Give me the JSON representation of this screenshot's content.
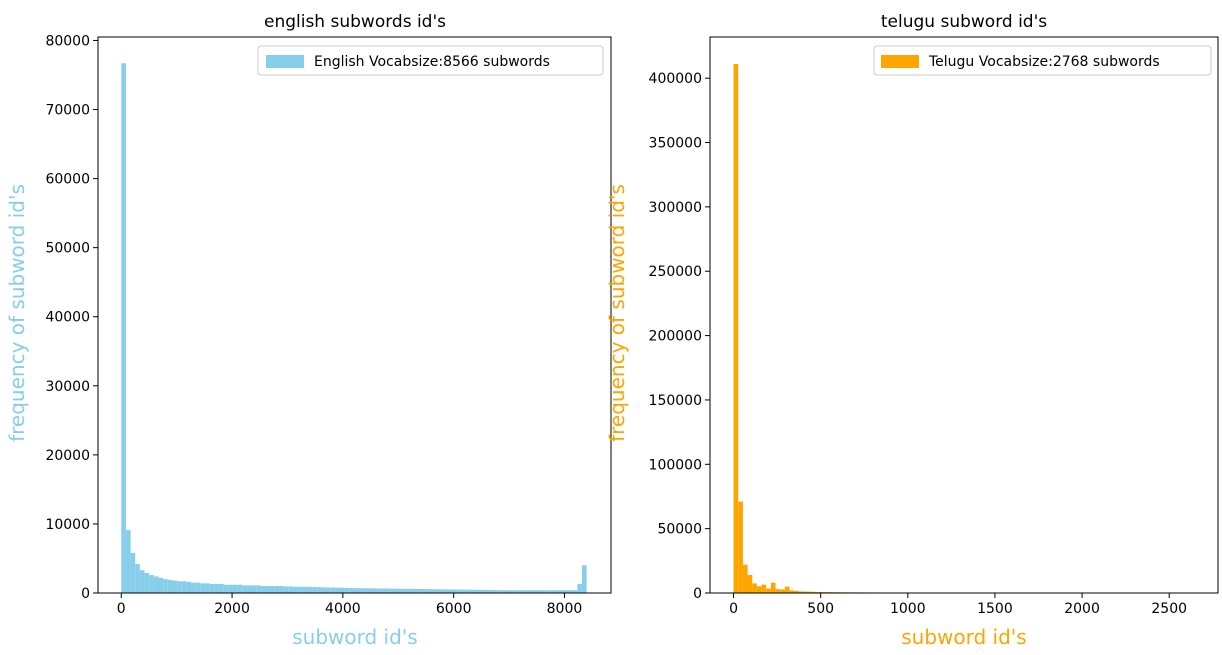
{
  "chart_data": [
    {
      "type": "bar",
      "title": "english subwords id's",
      "xlabel": "subword id's",
      "ylabel": "frequency of subword id's",
      "xlim": [
        -420,
        8840
      ],
      "ylim": [
        0,
        80500
      ],
      "xticks": [
        0,
        2000,
        4000,
        6000,
        8000
      ],
      "yticks": [
        0,
        10000,
        20000,
        30000,
        40000,
        50000,
        60000,
        70000,
        80000
      ],
      "bin_width": 84.0,
      "bin_start": 0,
      "legend": {
        "label": "English Vocabsize:8566 subwords",
        "placement": "top-right"
      },
      "color": "#87ceeb",
      "label_color": "#87ceeb",
      "grid": false,
      "values": [
        76700,
        9100,
        5800,
        4200,
        3300,
        2900,
        2600,
        2400,
        2200,
        2000,
        1900,
        1800,
        1700,
        1700,
        1600,
        1500,
        1500,
        1400,
        1400,
        1300,
        1300,
        1300,
        1200,
        1200,
        1200,
        1200,
        1100,
        1100,
        1100,
        1100,
        1000,
        1000,
        1000,
        1000,
        1000,
        950,
        950,
        900,
        900,
        900,
        880,
        860,
        840,
        820,
        800,
        800,
        780,
        760,
        740,
        720,
        700,
        700,
        690,
        680,
        670,
        660,
        650,
        640,
        630,
        620,
        610,
        600,
        600,
        590,
        580,
        570,
        560,
        550,
        540,
        530,
        520,
        510,
        500,
        500,
        490,
        480,
        470,
        460,
        450,
        440,
        430,
        420,
        410,
        400,
        400,
        400,
        400,
        400,
        400,
        400,
        400,
        400,
        400,
        400,
        400,
        400,
        400,
        400,
        1300,
        4000
      ]
    },
    {
      "type": "bar",
      "title": "telugu subword id's",
      "xlabel": "subword id's",
      "ylabel": "frequency of subword id's",
      "xlim": [
        -135,
        2780
      ],
      "ylim": [
        0,
        432000
      ],
      "xticks": [
        0,
        500,
        1000,
        1500,
        2000,
        2500
      ],
      "yticks": [
        0,
        50000,
        100000,
        150000,
        200000,
        250000,
        300000,
        350000,
        400000
      ],
      "bin_width": 26.8,
      "bin_start": 0,
      "legend": {
        "label": "Telugu Vocabsize:2768 subwords",
        "placement": "top-right"
      },
      "color": "#ffa500",
      "label_color": "#ffa500",
      "grid": false,
      "values": [
        411000,
        71000,
        22000,
        14000,
        7500,
        5200,
        6500,
        3500,
        8000,
        3000,
        2800,
        5000,
        2000,
        1600,
        1200,
        1100,
        1000,
        900,
        800,
        750,
        700,
        650,
        600,
        550,
        500,
        500,
        480,
        460,
        440,
        420,
        400,
        380,
        360,
        340,
        320,
        300,
        0,
        0,
        0,
        0,
        0,
        0,
        0,
        0,
        0,
        0,
        0,
        0,
        0,
        0,
        0,
        0,
        0,
        0,
        0,
        0,
        0,
        0,
        0,
        0,
        0,
        0,
        0,
        0,
        0,
        0,
        0,
        0,
        0,
        0,
        0,
        0,
        0,
        0,
        0,
        0,
        0,
        0,
        0,
        0,
        0,
        0,
        0,
        0,
        0,
        0,
        0,
        0,
        0,
        0,
        0,
        0,
        0,
        0,
        0,
        0,
        0,
        0,
        0,
        0
      ]
    }
  ]
}
